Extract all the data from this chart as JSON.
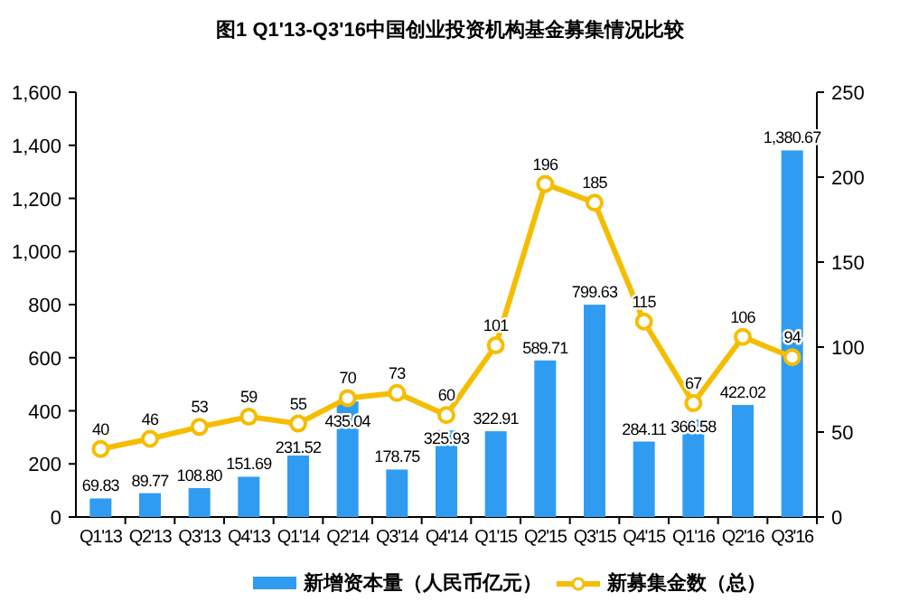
{
  "chart_data": {
    "type": "bar",
    "title": "图1 Q1'13-Q3'16中国创业投资机构基金募集情况比较",
    "categories": [
      "Q1'13",
      "Q2'13",
      "Q3'13",
      "Q4'13",
      "Q1'14",
      "Q2'14",
      "Q3'14",
      "Q4'14",
      "Q1'15",
      "Q2'15",
      "Q3'15",
      "Q4'15",
      "Q1'16",
      "Q2'16",
      "Q3'16"
    ],
    "series": [
      {
        "name": "新增资本量（人民币亿元）",
        "color": "#2f9cf2",
        "values": [
          69.83,
          89.77,
          108.8,
          151.69,
          231.52,
          435.04,
          178.75,
          325.93,
          322.91,
          589.71,
          799.63,
          284.11,
          366.58,
          422.02,
          1380.67
        ],
        "value_labels": [
          "69.83",
          "89.77",
          "108.80",
          "151.69",
          "231.52",
          "435.04",
          "178.75",
          "325.93",
          "322.91",
          "589.71",
          "799.63",
          "284.11",
          "366.58",
          "422.02",
          "1,380.67"
        ]
      },
      {
        "name": "新募集金数（总）",
        "type": "line",
        "axis": "y2",
        "color": "#f5bd00",
        "marker": "circle",
        "values": [
          40,
          46,
          53,
          59,
          55,
          70,
          73,
          60,
          101,
          196,
          185,
          115,
          67,
          106,
          94
        ]
      }
    ],
    "data_labels": true,
    "ylim": [
      0,
      1600
    ],
    "yticks": [
      0,
      {
        "value": 200,
        "label": "200"
      },
      400,
      600,
      800,
      {
        "value": 1000,
        "label": "1,000"
      },
      {
        "value": 1200,
        "label": "1,200"
      },
      {
        "value": 1400,
        "label": "1,400"
      },
      {
        "value": 1600,
        "label": "1,600"
      }
    ],
    "y2lim": [
      0,
      250
    ],
    "y2ticks": [
      0,
      50,
      100,
      150,
      200,
      250
    ],
    "legend": "bottom",
    "grid": false
  }
}
